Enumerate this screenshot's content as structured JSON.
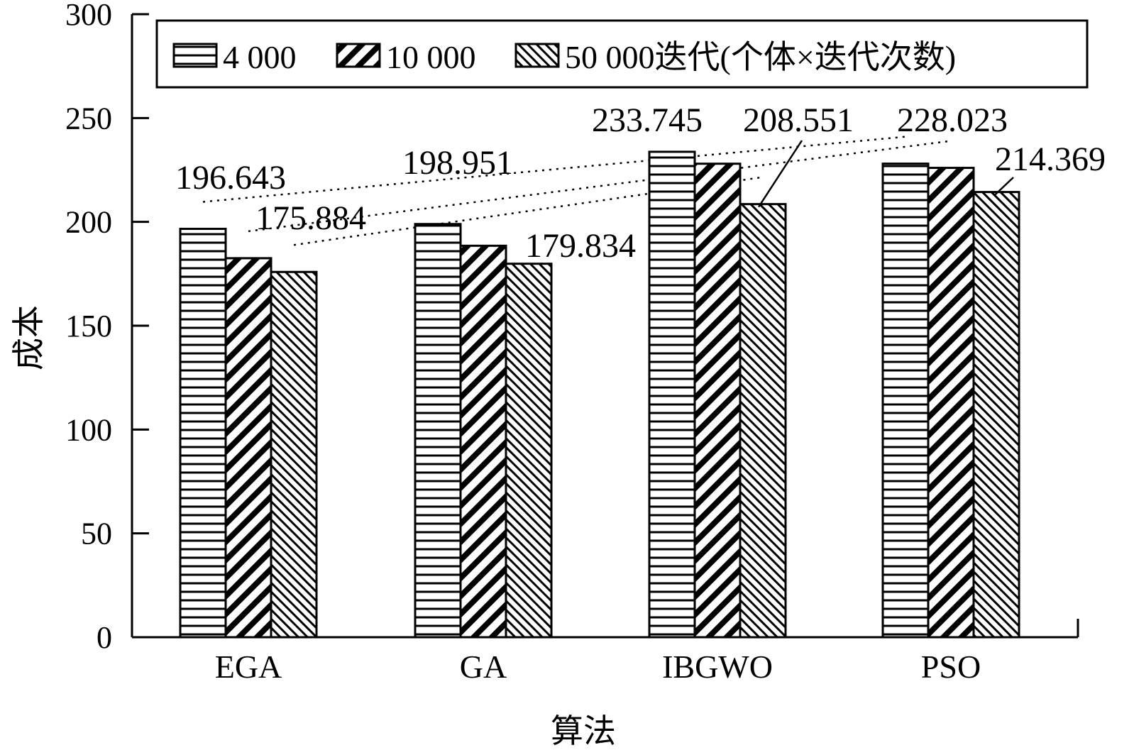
{
  "chart_data": {
    "type": "bar",
    "xlabel": "算法",
    "ylabel": "成本",
    "ylim": [
      0,
      300
    ],
    "yticks": [
      "0",
      "50",
      "100",
      "150",
      "200",
      "250",
      "300"
    ],
    "categories": [
      "EGA",
      "GA",
      "IBGWO",
      "PSO"
    ],
    "series": [
      {
        "name": "4 000",
        "values": [
          196.643,
          198.951,
          233.745,
          228.023
        ]
      },
      {
        "name": "10 000",
        "values": [
          182.5,
          188.5,
          228.0,
          226.0
        ]
      },
      {
        "name": "50 000",
        "values": [
          175.884,
          179.834,
          208.551,
          214.369
        ]
      }
    ],
    "legend_suffix": "迭代(个体×迭代次数)",
    "legend_position": "top",
    "grid": false,
    "data_labels": [
      "196.643",
      "175.884",
      "198.951",
      "179.834",
      "233.745",
      "208.551",
      "228.023",
      "214.369"
    ]
  }
}
